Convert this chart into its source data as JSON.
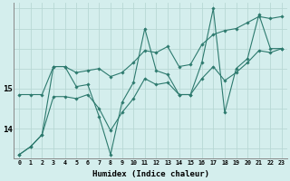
{
  "xlabel": "Humidex (Indice chaleur)",
  "bg_color": "#d4eeed",
  "grid_color": "#b8d8d5",
  "line_color": "#2d7a6e",
  "x_values": [
    0,
    1,
    2,
    3,
    4,
    5,
    6,
    7,
    8,
    9,
    10,
    11,
    12,
    13,
    14,
    15,
    16,
    17,
    18,
    19,
    20,
    21,
    22,
    23
  ],
  "line_zigzag": [
    13.35,
    13.55,
    13.85,
    15.55,
    15.55,
    15.05,
    15.1,
    14.3,
    13.35,
    14.65,
    15.15,
    16.5,
    15.45,
    15.35,
    14.85,
    14.85,
    15.65,
    17.0,
    14.4,
    15.5,
    15.75,
    16.85,
    16.0,
    16.0
  ],
  "line_upper": [
    14.85,
    14.85,
    14.85,
    15.55,
    15.55,
    15.4,
    15.45,
    15.5,
    15.3,
    15.4,
    15.65,
    15.95,
    15.9,
    16.05,
    15.55,
    15.6,
    16.1,
    16.35,
    16.45,
    16.5,
    16.65,
    16.8,
    16.75,
    16.8
  ],
  "line_lower": [
    13.35,
    13.55,
    13.85,
    14.8,
    14.8,
    14.75,
    14.85,
    14.5,
    13.95,
    14.4,
    14.75,
    15.25,
    15.1,
    15.15,
    14.85,
    14.85,
    15.25,
    15.55,
    15.2,
    15.4,
    15.65,
    15.95,
    15.9,
    16.0
  ],
  "ylim": [
    13.25,
    17.15
  ],
  "yticks": [
    14,
    15
  ],
  "xlim": [
    -0.5,
    23.5
  ]
}
